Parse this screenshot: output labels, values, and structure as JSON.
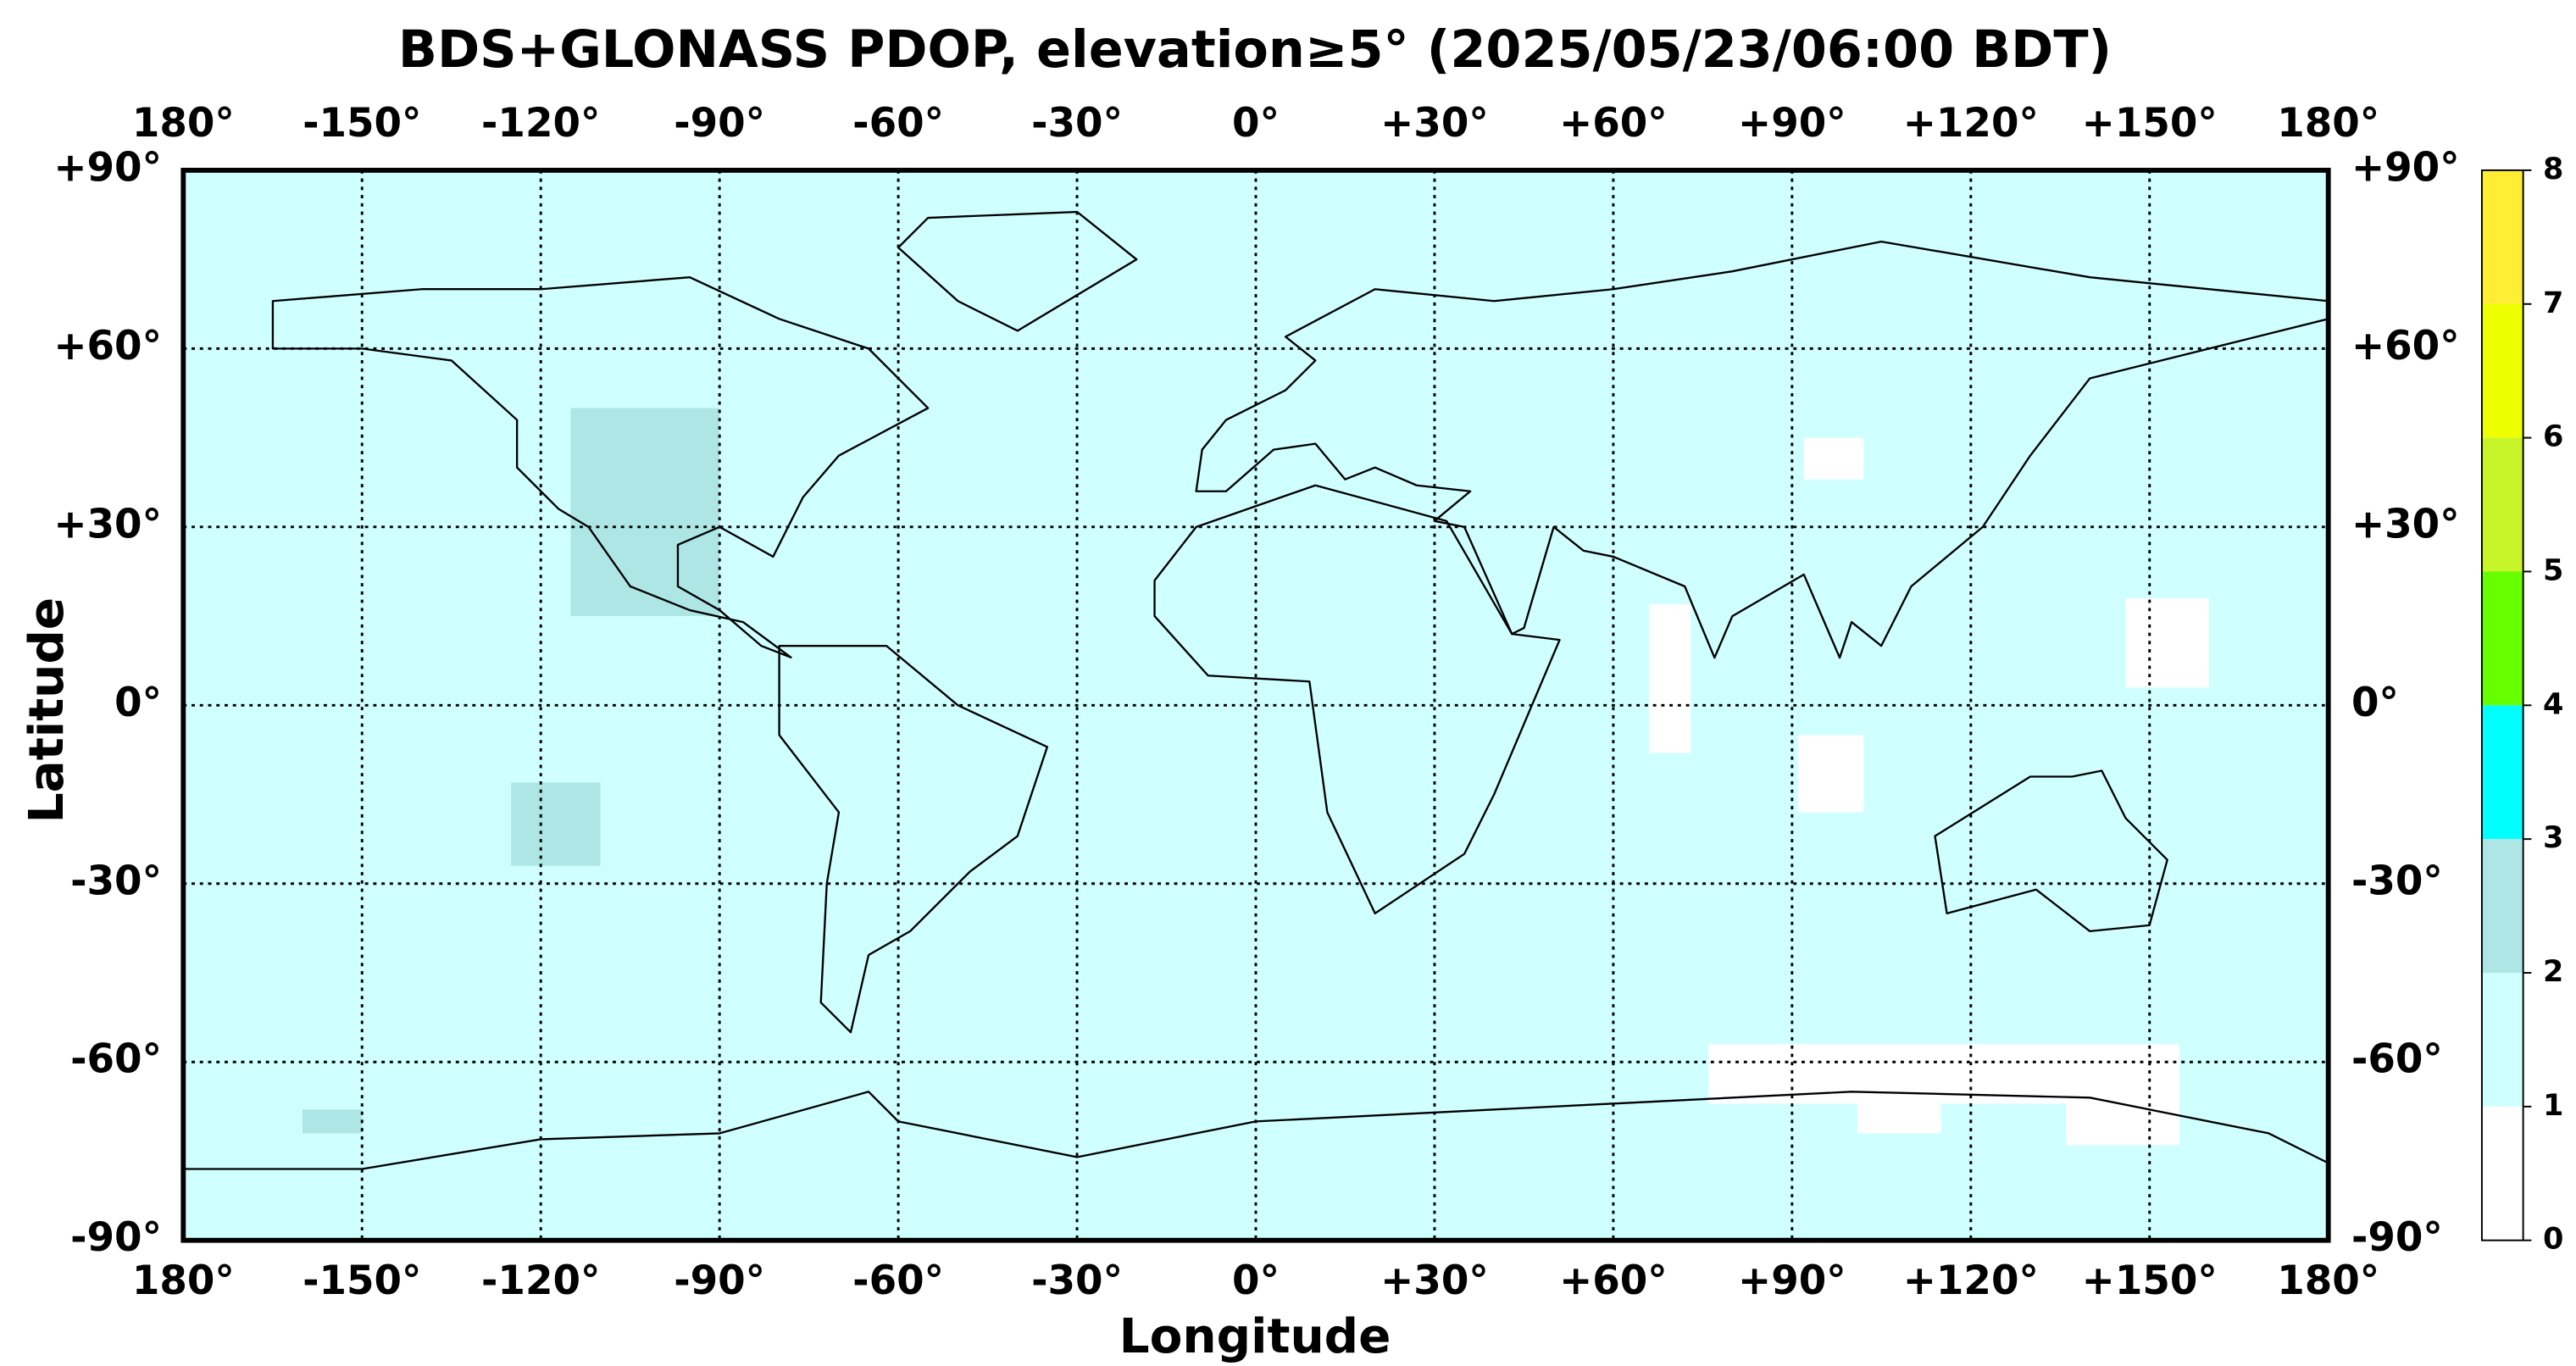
{
  "chart_data": {
    "type": "map",
    "title": "BDS+GLONASS PDOP, elevation≥5° (2025/05/23/06:00 BDT)",
    "x_label": "Longitude",
    "y_label": "Latitude",
    "xlim": [
      -180,
      180
    ],
    "ylim": [
      -90,
      90
    ],
    "xticks": [
      {
        "value": -180,
        "label": "180°"
      },
      {
        "value": -150,
        "label": "-150°"
      },
      {
        "value": -120,
        "label": "-120°"
      },
      {
        "value": -90,
        "label": "-90°"
      },
      {
        "value": -60,
        "label": "-60°"
      },
      {
        "value": -30,
        "label": "-30°"
      },
      {
        "value": 0,
        "label": "0°"
      },
      {
        "value": 30,
        "label": "+30°"
      },
      {
        "value": 60,
        "label": "+60°"
      },
      {
        "value": 90,
        "label": "+90°"
      },
      {
        "value": 120,
        "label": "+120°"
      },
      {
        "value": 150,
        "label": "+150°"
      },
      {
        "value": 180,
        "label": "180°"
      }
    ],
    "yticks": [
      {
        "value": 90,
        "label": "+90°"
      },
      {
        "value": 60,
        "label": "+60°"
      },
      {
        "value": 30,
        "label": "+30°"
      },
      {
        "value": 0,
        "label": "0°"
      },
      {
        "value": -30,
        "label": "-30°"
      },
      {
        "value": -60,
        "label": "-60°"
      },
      {
        "value": -90,
        "label": "-90°"
      }
    ],
    "grid": true,
    "background_pdop": 1.5,
    "patches": [
      {
        "lon": [
          -115,
          -90
        ],
        "lat": [
          15,
          50
        ],
        "pdop": 2.5
      },
      {
        "lon": [
          -125,
          -110
        ],
        "lat": [
          -27,
          -13
        ],
        "pdop": 2.5
      },
      {
        "lon": [
          -160,
          -150
        ],
        "lat": [
          -72,
          -68
        ],
        "pdop": 2.5
      },
      {
        "lon": [
          66,
          73
        ],
        "lat": [
          -8,
          17
        ],
        "pdop": 0.5
      },
      {
        "lon": [
          91,
          102
        ],
        "lat": [
          -18,
          -5
        ],
        "pdop": 0.5
      },
      {
        "lon": [
          146,
          160
        ],
        "lat": [
          3,
          18
        ],
        "pdop": 0.5
      },
      {
        "lon": [
          92,
          102
        ],
        "lat": [
          38,
          45
        ],
        "pdop": 0.5
      },
      {
        "lon": [
          76,
          155
        ],
        "lat": [
          -67,
          -57
        ],
        "pdop": 0.5
      },
      {
        "lon": [
          101,
          115
        ],
        "lat": [
          -72,
          -65
        ],
        "pdop": 0.5
      },
      {
        "lon": [
          136,
          155
        ],
        "lat": [
          -74,
          -65
        ],
        "pdop": 0.5
      }
    ],
    "colorbar": {
      "ticks": [
        0,
        1,
        2,
        3,
        4,
        5,
        6,
        7,
        8
      ],
      "colors": [
        "#ffffff",
        "#d0ffff",
        "#aee6e6",
        "#00ffff",
        "#66ff00",
        "#c8f52a",
        "#eeff00",
        "#ffee33"
      ]
    }
  }
}
